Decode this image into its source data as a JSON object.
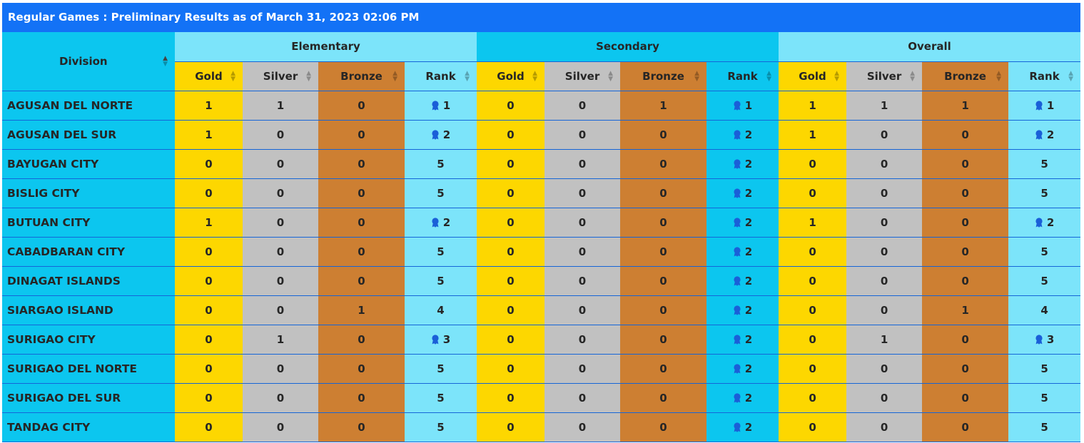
{
  "title": "Regular Games : Preliminary Results as of March 31, 2023 02:06 PM",
  "columns": {
    "division": "Division",
    "groups": [
      "Elementary",
      "Secondary",
      "Overall"
    ],
    "sub": [
      "Gold",
      "Silver",
      "Bronze",
      "Rank"
    ]
  },
  "colors": {
    "title_bar": "#1372f6",
    "gold": "#fdd700",
    "silver": "#c1c1c1",
    "bronze": "#cd7f32",
    "light_blue": "#7ce4fa",
    "cyan": "#0cc6ef",
    "medal_icon": "#1a5fd8"
  },
  "icons": {
    "medal": "medal-icon",
    "sort": "sort-icon"
  },
  "rows": [
    {
      "division": "AGUSAN DEL NORTE",
      "elementary": {
        "gold": "1",
        "silver": "1",
        "bronze": "0",
        "rank": "1",
        "medal": true
      },
      "secondary": {
        "gold": "0",
        "silver": "0",
        "bronze": "1",
        "rank": "1",
        "medal": true
      },
      "overall": {
        "gold": "1",
        "silver": "1",
        "bronze": "1",
        "rank": "1",
        "medal": true
      }
    },
    {
      "division": "AGUSAN DEL SUR",
      "elementary": {
        "gold": "1",
        "silver": "0",
        "bronze": "0",
        "rank": "2",
        "medal": true
      },
      "secondary": {
        "gold": "0",
        "silver": "0",
        "bronze": "0",
        "rank": "2",
        "medal": true
      },
      "overall": {
        "gold": "1",
        "silver": "0",
        "bronze": "0",
        "rank": "2",
        "medal": true
      }
    },
    {
      "division": "BAYUGAN CITY",
      "elementary": {
        "gold": "0",
        "silver": "0",
        "bronze": "0",
        "rank": "5",
        "medal": false
      },
      "secondary": {
        "gold": "0",
        "silver": "0",
        "bronze": "0",
        "rank": "2",
        "medal": true
      },
      "overall": {
        "gold": "0",
        "silver": "0",
        "bronze": "0",
        "rank": "5",
        "medal": false
      }
    },
    {
      "division": "BISLIG CITY",
      "elementary": {
        "gold": "0",
        "silver": "0",
        "bronze": "0",
        "rank": "5",
        "medal": false
      },
      "secondary": {
        "gold": "0",
        "silver": "0",
        "bronze": "0",
        "rank": "2",
        "medal": true
      },
      "overall": {
        "gold": "0",
        "silver": "0",
        "bronze": "0",
        "rank": "5",
        "medal": false
      }
    },
    {
      "division": "BUTUAN CITY",
      "elementary": {
        "gold": "1",
        "silver": "0",
        "bronze": "0",
        "rank": "2",
        "medal": true
      },
      "secondary": {
        "gold": "0",
        "silver": "0",
        "bronze": "0",
        "rank": "2",
        "medal": true
      },
      "overall": {
        "gold": "1",
        "silver": "0",
        "bronze": "0",
        "rank": "2",
        "medal": true
      }
    },
    {
      "division": "CABADBARAN CITY",
      "elementary": {
        "gold": "0",
        "silver": "0",
        "bronze": "0",
        "rank": "5",
        "medal": false
      },
      "secondary": {
        "gold": "0",
        "silver": "0",
        "bronze": "0",
        "rank": "2",
        "medal": true
      },
      "overall": {
        "gold": "0",
        "silver": "0",
        "bronze": "0",
        "rank": "5",
        "medal": false
      }
    },
    {
      "division": "DINAGAT ISLANDS",
      "elementary": {
        "gold": "0",
        "silver": "0",
        "bronze": "0",
        "rank": "5",
        "medal": false
      },
      "secondary": {
        "gold": "0",
        "silver": "0",
        "bronze": "0",
        "rank": "2",
        "medal": true
      },
      "overall": {
        "gold": "0",
        "silver": "0",
        "bronze": "0",
        "rank": "5",
        "medal": false
      }
    },
    {
      "division": "SIARGAO ISLAND",
      "elementary": {
        "gold": "0",
        "silver": "0",
        "bronze": "1",
        "rank": "4",
        "medal": false
      },
      "secondary": {
        "gold": "0",
        "silver": "0",
        "bronze": "0",
        "rank": "2",
        "medal": true
      },
      "overall": {
        "gold": "0",
        "silver": "0",
        "bronze": "1",
        "rank": "4",
        "medal": false
      }
    },
    {
      "division": "SURIGAO CITY",
      "elementary": {
        "gold": "0",
        "silver": "1",
        "bronze": "0",
        "rank": "3",
        "medal": true
      },
      "secondary": {
        "gold": "0",
        "silver": "0",
        "bronze": "0",
        "rank": "2",
        "medal": true
      },
      "overall": {
        "gold": "0",
        "silver": "1",
        "bronze": "0",
        "rank": "3",
        "medal": true
      }
    },
    {
      "division": "SURIGAO DEL NORTE",
      "elementary": {
        "gold": "0",
        "silver": "0",
        "bronze": "0",
        "rank": "5",
        "medal": false
      },
      "secondary": {
        "gold": "0",
        "silver": "0",
        "bronze": "0",
        "rank": "2",
        "medal": true
      },
      "overall": {
        "gold": "0",
        "silver": "0",
        "bronze": "0",
        "rank": "5",
        "medal": false
      }
    },
    {
      "division": "SURIGAO DEL SUR",
      "elementary": {
        "gold": "0",
        "silver": "0",
        "bronze": "0",
        "rank": "5",
        "medal": false
      },
      "secondary": {
        "gold": "0",
        "silver": "0",
        "bronze": "0",
        "rank": "2",
        "medal": true
      },
      "overall": {
        "gold": "0",
        "silver": "0",
        "bronze": "0",
        "rank": "5",
        "medal": false
      }
    },
    {
      "division": "TANDAG CITY",
      "elementary": {
        "gold": "0",
        "silver": "0",
        "bronze": "0",
        "rank": "5",
        "medal": false
      },
      "secondary": {
        "gold": "0",
        "silver": "0",
        "bronze": "0",
        "rank": "2",
        "medal": true
      },
      "overall": {
        "gold": "0",
        "silver": "0",
        "bronze": "0",
        "rank": "5",
        "medal": false
      }
    }
  ]
}
